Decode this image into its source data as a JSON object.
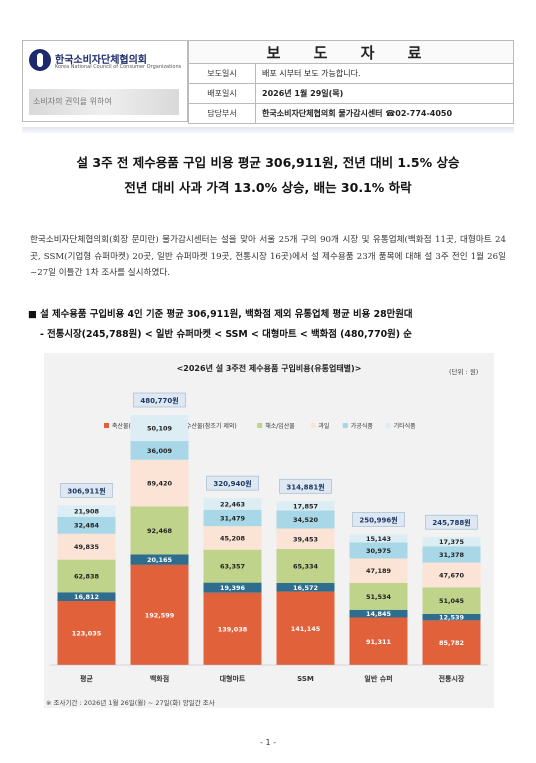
{
  "header": {
    "org_name_ko": "한국소비자단체협의회",
    "org_name_en": "Korea National Council of Consumer Organizations",
    "sub_logo_text": "소비자의 권익을 위하여",
    "doc_type": "보 도 자 료",
    "rows": [
      {
        "key": "보도일시",
        "value": "배포 시부터 보도 가능합니다."
      },
      {
        "key": "배포일시",
        "value": "2026년 1월 29일(목)"
      },
      {
        "key": "담당부서",
        "value": "한국소비자단체협의회 물가감시센터 ☎02-774-4050"
      }
    ]
  },
  "headline": {
    "line1": "설 3주 전 제수용품 구입 비용 평균 306,911원, 전년 대비 1.5% 상승",
    "line2": "전년 대비 사과 가격 13.0% 상승, 배는 30.1% 하락"
  },
  "paragraph": "한국소비자단체협의회(회장 문미란) 물가감시센터는 설을 맞아 서울 25개 구의 90개 시장 및 유통업체(백화점 11곳, 대형마트 24곳, SSM(기업형 슈퍼마켓) 20곳, 일반 슈퍼마켓 19곳, 전통시장 16곳)에서 설 제수용품 23개 품목에 대해 설 3주 전인 1월 26일~27일 이틀간 1차 조사를 실시하였다.",
  "bullet": {
    "line1": "■ 설 제수용품 구입비용 4인 기준 평균 306,911원, 백화점 제외 유통업체 평균 비용 28만원대",
    "line2": "- 전통시장(245,788원) < 일반 슈퍼마켓 < SSM < 대형마트 < 백화점 (480,770원) 순"
  },
  "chart_data": {
    "type": "bar",
    "stacked": true,
    "title": "<2026년 설 3주전 제수용품 구입비용(유통업태별)>",
    "unit": "(단위 : 원)",
    "categories": [
      "평균",
      "백화점",
      "대형마트",
      "SSM",
      "일반 슈퍼",
      "전통시장"
    ],
    "totals": [
      306911,
      480770,
      320940,
      314881,
      250996,
      245788
    ],
    "totals_labels": [
      "306,911원",
      "480,770원",
      "320,940원",
      "314,881원",
      "250,996원",
      "245,788원"
    ],
    "series": [
      {
        "name": "축산물(계란 제외)",
        "color": "#e0613a",
        "values": [
          123035,
          192599,
          139038,
          141145,
          91311,
          85782
        ]
      },
      {
        "name": "수산물(참조기 제외)",
        "color": "#2f6d8d",
        "values": [
          16812,
          20165,
          19396,
          16572,
          14845,
          12539
        ]
      },
      {
        "name": "채소/임산물",
        "color": "#bfd38a",
        "values": [
          62838,
          92468,
          63357,
          65334,
          51534,
          51045
        ]
      },
      {
        "name": "과일",
        "color": "#fbe4d5",
        "values": [
          49835,
          89420,
          45208,
          39453,
          47189,
          47670
        ]
      },
      {
        "name": "가공식품",
        "color": "#a8d7e8",
        "values": [
          32484,
          36009,
          31479,
          34520,
          30975,
          31378
        ]
      },
      {
        "name": "기타식품",
        "color": "#dcedf3",
        "values": [
          21908,
          50109,
          22463,
          17857,
          15143,
          17375
        ]
      }
    ],
    "grid": false,
    "legend_position": "top"
  },
  "note": "※ 조사기간 : 2026년 1월 26일(월) ~ 27일(화) 양일간 조사",
  "page_number": "- 1 -"
}
